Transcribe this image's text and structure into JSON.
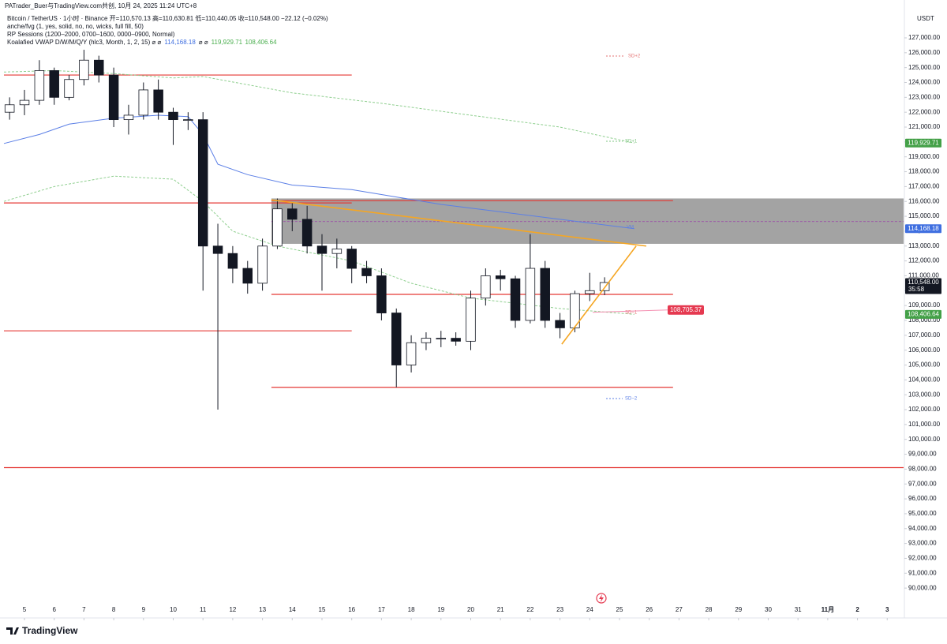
{
  "chart_data": {
    "type": "candlestick",
    "title": "PATrader_Buer与TradingView.com共创, 10月 24, 2025 11:24 UTC+8",
    "subtitle": "Bitcoin / TetherUS · 1小时 · Binance  开=110,570.13 高=110,630.81 低=110,440.05 收=110,548.00 −22.12 (−0.02%)",
    "indicators": [
      "anche/fvg (1, yes, solid, no, no, wicks, full fill, 50)",
      "RP Sessions (1200–2000, 0700–1600, 0000–0900, Normal)"
    ],
    "vwap_legend": [
      {
        "text": "Koalafied VWAP D/W/M/Q/Y (hlc3, Month, 1, 2, 15)  ⌀  ⌀",
        "color": "#131722"
      },
      {
        "text": "114,168.18",
        "color": "#3f6fe0"
      },
      {
        "text": "⌀  ⌀",
        "color": "#131722"
      },
      {
        "text": "119,929.71",
        "color": "#4caf50"
      },
      {
        "text": "108,406.64",
        "color": "#4caf50"
      }
    ],
    "currency": "USDT",
    "brand": "TradingView",
    "xlim": [
      4.31,
      34.55
    ],
    "xticks": [
      5,
      6,
      7,
      8,
      9,
      10,
      11,
      12,
      13,
      14,
      15,
      16,
      17,
      18,
      19,
      20,
      21,
      22,
      23,
      24,
      25,
      26,
      27,
      28,
      29,
      30,
      31,
      {
        "value": 32,
        "label": "11月"
      },
      {
        "value": 33,
        "label": "2"
      },
      {
        "value": 34,
        "label": "3"
      }
    ],
    "ylim": [
      88150,
      128750
    ],
    "yticks": [
      {
        "value": 127000,
        "label": "127,000.00"
      },
      {
        "value": 126000,
        "label": "126,000.00"
      },
      {
        "value": 125000,
        "label": "125,000.00"
      },
      {
        "value": 124000,
        "label": "124,000.00"
      },
      {
        "value": 123000,
        "label": "123,000.00"
      },
      {
        "value": 122000,
        "label": "122,000.00"
      },
      {
        "value": 121000,
        "label": "121,000.00"
      },
      {
        "value": 120000,
        "label": "120,000.00"
      },
      {
        "value": 119000,
        "label": "119,000.00"
      },
      {
        "value": 118000,
        "label": "118,000.00"
      },
      {
        "value": 117000,
        "label": "117,000.00"
      },
      {
        "value": 116000,
        "label": "116,000.00"
      },
      {
        "value": 115000,
        "label": "115,000.00"
      },
      {
        "value": 114000,
        "label": "114,000.00"
      },
      {
        "value": 113000,
        "label": "113,000.00"
      },
      {
        "value": 112000,
        "label": "112,000.00"
      },
      {
        "value": 111000,
        "label": "111,000.00"
      },
      {
        "value": 110000,
        "label": "110,000.00"
      },
      {
        "value": 109000,
        "label": "109,000.00"
      },
      {
        "value": 108000,
        "label": "108,000.00"
      },
      {
        "value": 107000,
        "label": "107,000.00"
      },
      {
        "value": 106000,
        "label": "106,000.00"
      },
      {
        "value": 105000,
        "label": "105,000.00"
      },
      {
        "value": 104000,
        "label": "104,000.00"
      },
      {
        "value": 103000,
        "label": "103,000.00"
      },
      {
        "value": 102000,
        "label": "102,000.00"
      },
      {
        "value": 101000,
        "label": "101,000.00"
      },
      {
        "value": 100000,
        "label": "100,000.00"
      },
      {
        "value": 99000,
        "label": "99,000.00"
      },
      {
        "value": 98000,
        "label": "98,000.00"
      },
      {
        "value": 97000,
        "label": "97,000.00"
      },
      {
        "value": 96000,
        "label": "96,000.00"
      },
      {
        "value": 95000,
        "label": "95,000.00"
      },
      {
        "value": 94000,
        "label": "94,000.00"
      },
      {
        "value": 93000,
        "label": "93,000.00"
      },
      {
        "value": 92000,
        "label": "92,000.00"
      },
      {
        "value": 91000,
        "label": "91,000.00"
      },
      {
        "value": 90000,
        "label": "90,000.00"
      }
    ],
    "candles": {
      "x": [
        4.5,
        5,
        5.5,
        6,
        6.5,
        7,
        7.5,
        8,
        8.5,
        9,
        9.5,
        10,
        10.5,
        11,
        11.5,
        12,
        12.5,
        13,
        13.5,
        14,
        14.5,
        15,
        15.5,
        16,
        16.5,
        17,
        17.5,
        18,
        18.5,
        19,
        19.5,
        20,
        20.5,
        21,
        21.5,
        22,
        22.5,
        23,
        23.5,
        24,
        24.5
      ],
      "open": [
        122000,
        122500,
        122800,
        124800,
        123000,
        124200,
        125500,
        124500,
        121500,
        121800,
        123500,
        122000,
        121500,
        121500,
        113000,
        112500,
        111500,
        110500,
        113000,
        115500,
        114800,
        113000,
        112500,
        112800,
        111500,
        111000,
        108500,
        105000,
        106500,
        106800,
        106800,
        106600,
        109500,
        111000,
        110800,
        108000,
        111500,
        108000,
        107500,
        109800,
        110000
      ],
      "high": [
        123000,
        123500,
        125500,
        125000,
        124500,
        126200,
        125800,
        125000,
        122500,
        124000,
        124200,
        122300,
        122000,
        122000,
        114500,
        113000,
        112000,
        113500,
        116200,
        115900,
        115700,
        113800,
        113500,
        113000,
        112000,
        111500,
        108800,
        107000,
        107200,
        107300,
        107200,
        110000,
        111500,
        111400,
        111000,
        113800,
        112000,
        108500,
        110000,
        111200,
        110900
      ],
      "low": [
        121500,
        121800,
        122500,
        122500,
        122800,
        123800,
        124000,
        121000,
        120500,
        121500,
        121500,
        119800,
        120800,
        110000,
        102000,
        110500,
        109800,
        110000,
        112800,
        114000,
        112500,
        110000,
        111500,
        110500,
        110500,
        108000,
        103500,
        104500,
        106000,
        106200,
        106300,
        106000,
        109000,
        110000,
        107500,
        107800,
        107500,
        106800,
        107200,
        109300,
        109700
      ],
      "close": [
        122500,
        122800,
        124800,
        123000,
        124200,
        125500,
        124500,
        121500,
        121800,
        123500,
        122000,
        121500,
        121500,
        113000,
        112500,
        111500,
        110500,
        113000,
        115500,
        114800,
        113000,
        112500,
        112800,
        111500,
        111000,
        108500,
        105000,
        106500,
        106800,
        106800,
        106600,
        109500,
        111000,
        110800,
        108000,
        111500,
        108000,
        107500,
        109800,
        110000,
        110548
      ],
      "up_color": "#ffffff",
      "down_color": "#131722",
      "border_color": "#131722"
    },
    "lines": [
      {
        "name": "VWAP",
        "color": "#5b7fe6",
        "dash": false,
        "x": [
          4.31,
          5.5,
          6.5,
          8,
          9.5,
          10.5,
          11,
          11.5,
          12.5,
          14,
          16,
          17.5,
          19,
          21,
          23,
          25.5
        ],
        "values": [
          119900,
          120500,
          121200,
          121600,
          121800,
          121700,
          120500,
          118500,
          117800,
          117100,
          116800,
          116300,
          115800,
          115300,
          114800,
          114168.18
        ]
      },
      {
        "name": "SD+1",
        "color": "#8fcf8f",
        "dash": true,
        "x": [
          4.31,
          6,
          8,
          10,
          11,
          14,
          17,
          20,
          23,
          25.5
        ],
        "values": [
          124700,
          124800,
          124600,
          124300,
          124400,
          123300,
          122600,
          121800,
          121000,
          119929.71
        ]
      },
      {
        "name": "SD−1",
        "color": "#8fcf8f",
        "dash": true,
        "x": [
          4.31,
          6,
          8,
          10,
          11,
          12,
          13.5,
          16,
          18,
          20,
          23,
          25.5
        ],
        "values": [
          116000,
          117000,
          117700,
          117500,
          116000,
          114000,
          113000,
          112000,
          110500,
          109500,
          108800,
          108406.64
        ]
      }
    ],
    "levels": [
      {
        "value": 124500,
        "from": 4.31,
        "to": 16.0
      },
      {
        "value": 115900,
        "from": 4.31,
        "to": 16.0
      },
      {
        "value": 116050,
        "from": 13.3,
        "to": 26.8
      },
      {
        "value": 109750,
        "from": 13.3,
        "to": 26.8
      },
      {
        "value": 107300,
        "from": 4.31,
        "to": 16.0
      },
      {
        "value": 103500,
        "from": 13.3,
        "to": 26.8
      },
      {
        "value": 98100,
        "from": 4.31,
        "to": 34.55
      }
    ],
    "level_color": "#e53935",
    "zone": {
      "top": 116200,
      "bottom": 113150,
      "from": 13.3,
      "color": "#9e9e9e"
    },
    "midline": {
      "value": 114650,
      "color": "#9c4fa8"
    },
    "trendlines": [
      {
        "x": [
          13.3,
          25.9
        ],
        "values": [
          116100,
          113000
        ]
      },
      {
        "x": [
          23.06,
          25.56
        ],
        "values": [
          106400,
          113000
        ]
      }
    ],
    "trend_color": "#f5a623",
    "sd_labels": [
      "SD+2",
      "SD+1",
      "VM",
      "SD−1",
      "SD−2"
    ],
    "price_tags": [
      {
        "value": 119929.71,
        "label": "119,929.71",
        "color": "#43a047"
      },
      {
        "value": 114168.18,
        "label": "114,168.18",
        "color": "#3f6fe0"
      },
      {
        "value": 110548,
        "label": "110,548.00",
        "color": "#131722",
        "countdown": "35:58"
      },
      {
        "value": 108406.64,
        "label": "108,406.64",
        "color": "#43a047"
      }
    ],
    "alert": {
      "value": 108705.37,
      "label": "108,705.37",
      "color": "#e53950"
    }
  }
}
